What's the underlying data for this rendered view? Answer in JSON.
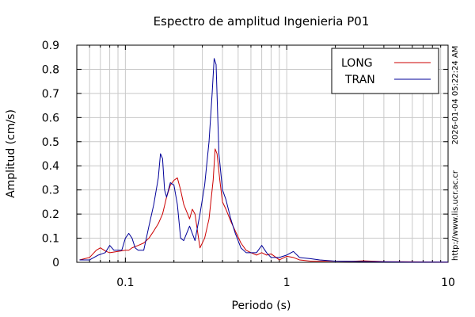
{
  "chart_data": {
    "type": "line",
    "title": "Espectro de amplitud Ingenieria P01",
    "xlabel": "Periodo (s)",
    "ylabel": "Amplitud (cm/s)",
    "x_scale": "log",
    "xlim": [
      0.05,
      10
    ],
    "ylim": [
      0,
      0.9
    ],
    "grid": true,
    "legend_position": "top-right",
    "x_ticks": [
      0.1,
      1,
      10
    ],
    "x_tick_labels": [
      "0.1",
      "1",
      "10"
    ],
    "y_ticks": [
      0,
      0.1,
      0.2,
      0.3,
      0.4,
      0.5,
      0.6,
      0.7,
      0.8,
      0.9
    ],
    "y_tick_labels": [
      "0",
      "0.1",
      "0.2",
      "0.3",
      "0.4",
      "0.5",
      "0.6",
      "0.7",
      "0.8",
      "0.9"
    ],
    "series": [
      {
        "name": "LONG",
        "color": "#cc0000",
        "x": [
          0.052,
          0.06,
          0.066,
          0.07,
          0.076,
          0.08,
          0.09,
          0.1,
          0.105,
          0.11,
          0.12,
          0.13,
          0.14,
          0.15,
          0.16,
          0.17,
          0.18,
          0.19,
          0.2,
          0.21,
          0.22,
          0.23,
          0.25,
          0.26,
          0.27,
          0.29,
          0.31,
          0.33,
          0.35,
          0.36,
          0.37,
          0.385,
          0.4,
          0.42,
          0.45,
          0.48,
          0.52,
          0.56,
          0.6,
          0.65,
          0.7,
          0.75,
          0.8,
          0.9,
          1.0,
          1.1,
          1.2,
          1.4,
          1.6,
          2.0,
          2.5,
          3.0,
          4.0,
          6.0,
          10.0
        ],
        "y": [
          0.01,
          0.02,
          0.05,
          0.06,
          0.045,
          0.04,
          0.045,
          0.05,
          0.05,
          0.06,
          0.07,
          0.08,
          0.1,
          0.13,
          0.16,
          0.2,
          0.27,
          0.32,
          0.34,
          0.35,
          0.3,
          0.24,
          0.18,
          0.22,
          0.2,
          0.06,
          0.1,
          0.18,
          0.34,
          0.47,
          0.45,
          0.34,
          0.25,
          0.22,
          0.17,
          0.13,
          0.08,
          0.05,
          0.04,
          0.03,
          0.04,
          0.03,
          0.035,
          0.01,
          0.025,
          0.02,
          0.01,
          0.005,
          0.005,
          0.005,
          0.004,
          0.006,
          0.003,
          0.002,
          0.001
        ]
      },
      {
        "name": "TRAN",
        "color": "#000099",
        "x": [
          0.052,
          0.06,
          0.068,
          0.075,
          0.08,
          0.085,
          0.09,
          0.095,
          0.1,
          0.105,
          0.11,
          0.115,
          0.12,
          0.13,
          0.14,
          0.15,
          0.16,
          0.165,
          0.17,
          0.175,
          0.18,
          0.19,
          0.2,
          0.21,
          0.22,
          0.23,
          0.25,
          0.27,
          0.29,
          0.31,
          0.33,
          0.345,
          0.355,
          0.365,
          0.38,
          0.4,
          0.42,
          0.45,
          0.48,
          0.52,
          0.56,
          0.6,
          0.65,
          0.7,
          0.75,
          0.8,
          0.9,
          1.0,
          1.1,
          1.2,
          1.4,
          1.6,
          2.0,
          2.5,
          3.0,
          4.0,
          6.0,
          10.0
        ],
        "y": [
          0.01,
          0.01,
          0.03,
          0.04,
          0.07,
          0.05,
          0.05,
          0.05,
          0.1,
          0.12,
          0.1,
          0.06,
          0.05,
          0.05,
          0.15,
          0.24,
          0.35,
          0.45,
          0.43,
          0.3,
          0.27,
          0.33,
          0.32,
          0.24,
          0.1,
          0.09,
          0.15,
          0.09,
          0.2,
          0.32,
          0.5,
          0.7,
          0.845,
          0.82,
          0.45,
          0.3,
          0.26,
          0.18,
          0.12,
          0.06,
          0.04,
          0.04,
          0.04,
          0.07,
          0.04,
          0.02,
          0.02,
          0.03,
          0.045,
          0.02,
          0.015,
          0.01,
          0.005,
          0.004,
          0.003,
          0.002,
          0.001,
          0.001
        ]
      }
    ]
  },
  "side_text": {
    "timestamp": "2026-01-04 05:22:24 AM",
    "url": "http://www.lis.ucr.ac.cr"
  }
}
